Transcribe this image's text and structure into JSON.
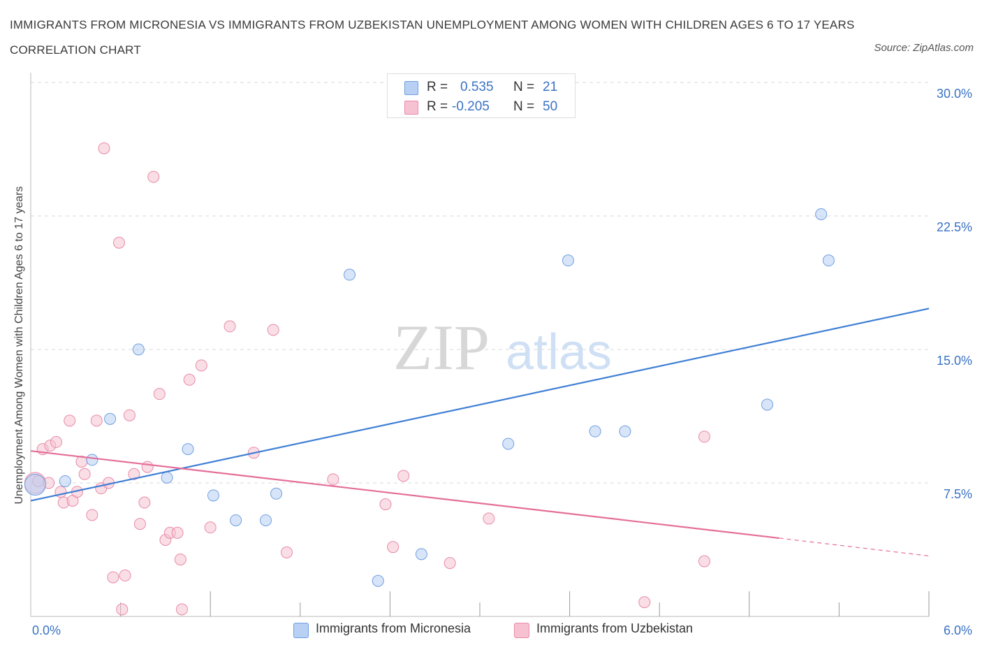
{
  "title": "IMMIGRANTS FROM MICRONESIA VS IMMIGRANTS FROM UZBEKISTAN UNEMPLOYMENT AMONG WOMEN WITH CHILDREN AGES 6 TO 17 YEARS CORRELATION CHART",
  "source": "Source: ZipAtlas.com",
  "watermark": {
    "zip": "ZIP",
    "atlas": "atlas"
  },
  "legend_top": {
    "rows": [
      {
        "r_label": "R =",
        "r_value": "0.535",
        "n_label": "N =",
        "n_value": "21"
      },
      {
        "r_label": "R =",
        "r_value": "-0.205",
        "n_label": "N =",
        "n_value": "50"
      }
    ]
  },
  "colors": {
    "micronesia": "#6f9fe0",
    "micronesia_fill": "#b8d0f4",
    "micronesia_line": "#3f7fd4",
    "uzbekistan": "#e88aa8",
    "uzbekistan_fill": "#f6c2d2",
    "uzbekistan_line": "#e46e98",
    "axis_text": "#3a72c4",
    "grid": "#d8d8d8"
  },
  "chart_data": {
    "type": "scatter",
    "title": "IMMIGRANTS FROM MICRONESIA VS IMMIGRANTS FROM UZBEKISTAN UNEMPLOYMENT AMONG WOMEN WITH CHILDREN AGES 6 TO 17 YEARS CORRELATION CHART",
    "xlabel": "",
    "ylabel": "Unemployment Among Women with Children Ages 6 to 17 years",
    "xlim": [
      0,
      6
    ],
    "ylim": [
      0,
      30
    ],
    "x_tick_labels": [
      "0.0%",
      "6.0%"
    ],
    "y_tick_labels": [
      "7.5%",
      "15.0%",
      "22.5%",
      "30.0%"
    ],
    "y_ticks": [
      7.5,
      15.0,
      22.5,
      30.0
    ],
    "grid": true,
    "legend_position": "bottom",
    "series": [
      {
        "name": "Immigrants from Micronesia",
        "r": 0.535,
        "n": 21,
        "trend": {
          "x": [
            0.0,
            6.0
          ],
          "y": [
            6.5,
            17.3
          ]
        },
        "points": [
          {
            "x": 0.03,
            "y": 7.4,
            "big": true
          },
          {
            "x": 0.23,
            "y": 7.6
          },
          {
            "x": 0.41,
            "y": 8.8
          },
          {
            "x": 0.53,
            "y": 11.1
          },
          {
            "x": 0.72,
            "y": 15.0
          },
          {
            "x": 0.91,
            "y": 7.8
          },
          {
            "x": 1.05,
            "y": 9.4
          },
          {
            "x": 1.22,
            "y": 6.8
          },
          {
            "x": 1.37,
            "y": 5.4
          },
          {
            "x": 1.57,
            "y": 5.4
          },
          {
            "x": 1.64,
            "y": 6.9
          },
          {
            "x": 2.13,
            "y": 19.2
          },
          {
            "x": 2.32,
            "y": 2.0
          },
          {
            "x": 2.61,
            "y": 3.5
          },
          {
            "x": 3.19,
            "y": 9.7
          },
          {
            "x": 3.59,
            "y": 20.0
          },
          {
            "x": 3.77,
            "y": 10.4
          },
          {
            "x": 3.97,
            "y": 10.4
          },
          {
            "x": 4.92,
            "y": 11.9
          },
          {
            "x": 5.28,
            "y": 22.6
          },
          {
            "x": 5.33,
            "y": 20.0
          }
        ]
      },
      {
        "name": "Immigrants from Uzbekistan",
        "r": -0.205,
        "n": 50,
        "trend": {
          "x": [
            0.0,
            5.0
          ],
          "y": [
            9.3,
            4.4
          ],
          "dashed_to": [
            6.0,
            3.4
          ]
        },
        "points": [
          {
            "x": 0.03,
            "y": 7.5,
            "big": true
          },
          {
            "x": 0.08,
            "y": 9.4
          },
          {
            "x": 0.12,
            "y": 7.5
          },
          {
            "x": 0.13,
            "y": 9.6
          },
          {
            "x": 0.17,
            "y": 9.8
          },
          {
            "x": 0.2,
            "y": 7.0
          },
          {
            "x": 0.22,
            "y": 6.4
          },
          {
            "x": 0.26,
            "y": 11.0
          },
          {
            "x": 0.28,
            "y": 6.5
          },
          {
            "x": 0.31,
            "y": 7.0
          },
          {
            "x": 0.34,
            "y": 8.7
          },
          {
            "x": 0.36,
            "y": 8.0
          },
          {
            "x": 0.41,
            "y": 5.7
          },
          {
            "x": 0.44,
            "y": 11.0
          },
          {
            "x": 0.47,
            "y": 7.2
          },
          {
            "x": 0.49,
            "y": 26.3
          },
          {
            "x": 0.52,
            "y": 7.5
          },
          {
            "x": 0.55,
            "y": 2.2
          },
          {
            "x": 0.59,
            "y": 21.0
          },
          {
            "x": 0.61,
            "y": 0.4
          },
          {
            "x": 0.63,
            "y": 2.3
          },
          {
            "x": 0.66,
            "y": 11.3
          },
          {
            "x": 0.69,
            "y": 8.0
          },
          {
            "x": 0.73,
            "y": 5.2
          },
          {
            "x": 0.76,
            "y": 6.4
          },
          {
            "x": 0.78,
            "y": 8.4
          },
          {
            "x": 0.82,
            "y": 24.7
          },
          {
            "x": 0.86,
            "y": 12.5
          },
          {
            "x": 0.9,
            "y": 4.3
          },
          {
            "x": 0.93,
            "y": 4.7
          },
          {
            "x": 0.98,
            "y": 4.7
          },
          {
            "x": 1.0,
            "y": 3.2
          },
          {
            "x": 1.01,
            "y": 0.4
          },
          {
            "x": 1.06,
            "y": 13.3
          },
          {
            "x": 1.14,
            "y": 14.1
          },
          {
            "x": 1.2,
            "y": 5.0
          },
          {
            "x": 1.33,
            "y": 16.3
          },
          {
            "x": 1.49,
            "y": 9.2
          },
          {
            "x": 1.62,
            "y": 16.1
          },
          {
            "x": 1.71,
            "y": 3.6
          },
          {
            "x": 2.02,
            "y": 7.7
          },
          {
            "x": 2.37,
            "y": 6.3
          },
          {
            "x": 2.42,
            "y": 3.9
          },
          {
            "x": 2.49,
            "y": 7.9
          },
          {
            "x": 2.8,
            "y": 3.0
          },
          {
            "x": 3.06,
            "y": 5.5
          },
          {
            "x": 4.1,
            "y": 0.8
          },
          {
            "x": 4.5,
            "y": 10.1
          },
          {
            "x": 4.5,
            "y": 3.1
          },
          {
            "x": 0.05,
            "y": 7.6
          }
        ]
      }
    ]
  }
}
